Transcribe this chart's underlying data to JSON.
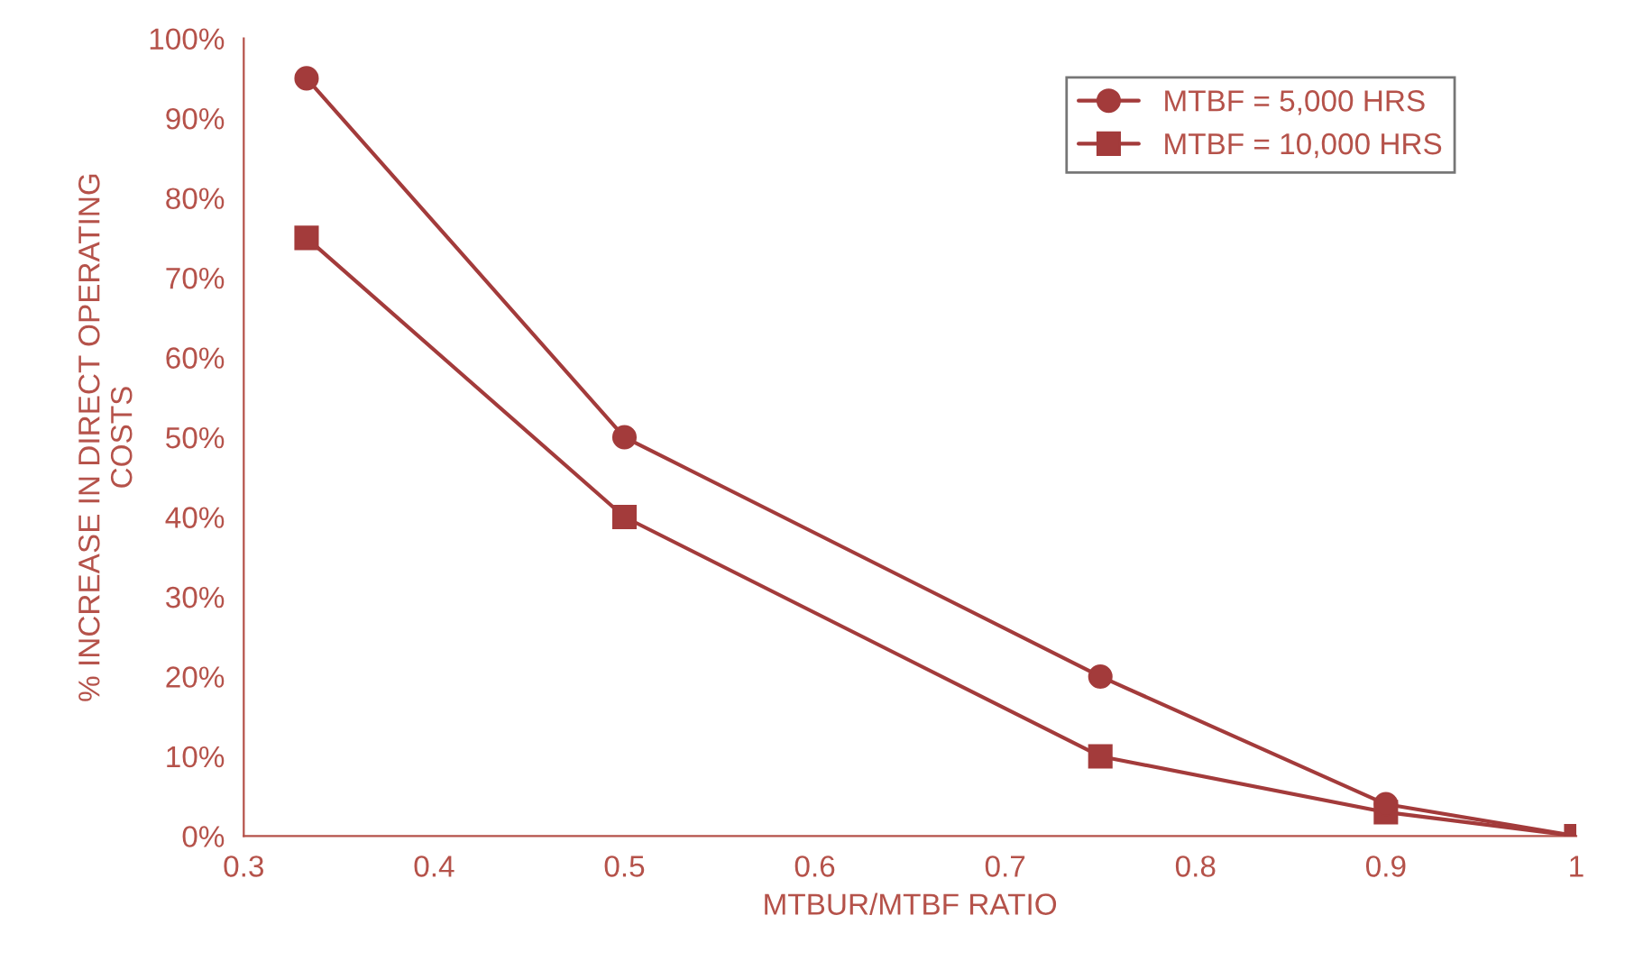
{
  "chart_data": {
    "type": "line",
    "xlabel": "MTBUR/MTBF RATIO",
    "ylabel": "% INCREASE IN DIRECT OPERATING\nCOSTS",
    "series": [
      {
        "name": "MTBF = 5,000 HRS",
        "color": "#a33b3b",
        "marker": "circle",
        "x": [
          0.333,
          0.5,
          0.75,
          0.9,
          1
        ],
        "values": [
          95,
          50,
          20,
          4,
          0
        ]
      },
      {
        "name": "MTBF = 10,000 HRS",
        "color": "#a33b3b",
        "marker": "square",
        "x": [
          0.333,
          0.5,
          0.75,
          0.9,
          1
        ],
        "values": [
          75,
          40,
          10,
          3,
          0
        ]
      }
    ],
    "xlim": [
      0.3,
      1
    ],
    "xticks": [
      0.3,
      0.4,
      0.5,
      0.6,
      0.7,
      0.8,
      0.9,
      1
    ],
    "ylim": [
      0,
      100
    ],
    "yticks": [
      {
        "value": 0,
        "label": "0%"
      },
      {
        "value": 10,
        "label": "10%"
      },
      {
        "value": 20,
        "label": "20%"
      },
      {
        "value": 30,
        "label": "30%"
      },
      {
        "value": 40,
        "label": "40%"
      },
      {
        "value": 50,
        "label": "50%"
      },
      {
        "value": 60,
        "label": "60%"
      },
      {
        "value": 70,
        "label": "70%"
      },
      {
        "value": 80,
        "label": "80%"
      },
      {
        "value": 90,
        "label": "90%"
      },
      {
        "value": 100,
        "label": "100%"
      }
    ],
    "grid": false,
    "legend": "top right",
    "line_style": "solid"
  }
}
